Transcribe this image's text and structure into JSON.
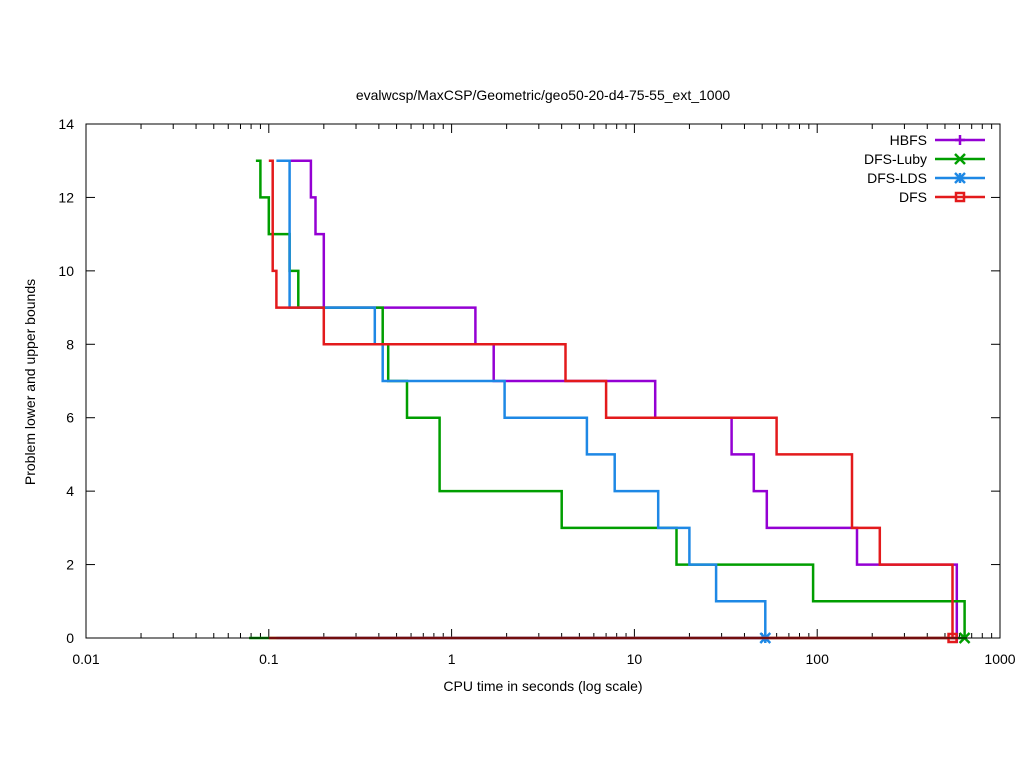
{
  "chart_data": {
    "type": "line",
    "title": "evalwcsp/MaxCSP/Geometric/geo50-20-d4-75-55_ext_1000",
    "xlabel": "CPU time in seconds (log scale)",
    "ylabel": "Problem lower and upper bounds",
    "xscale": "log",
    "xlim": [
      0.01,
      1000
    ],
    "ylim": [
      0,
      14
    ],
    "x_ticks": [
      0.01,
      0.1,
      1,
      10,
      100,
      1000
    ],
    "x_tick_labels": [
      "0.01",
      "0.1",
      "1",
      "10",
      "100",
      "1000"
    ],
    "y_ticks": [
      0,
      2,
      4,
      6,
      8,
      10,
      12,
      14
    ],
    "y_tick_labels": [
      "0",
      "2",
      "4",
      "6",
      "8",
      "10",
      "12",
      "14"
    ],
    "legend_position": "top-right",
    "series": [
      {
        "name": "HBFS",
        "color": "#9400d3",
        "marker": "plus",
        "upper": [
          [
            0.13,
            13
          ],
          [
            0.17,
            12
          ],
          [
            0.18,
            11
          ],
          [
            0.2,
            10
          ],
          [
            0.2,
            9
          ],
          [
            1.35,
            8
          ],
          [
            1.7,
            7
          ],
          [
            13,
            6
          ],
          [
            34,
            5
          ],
          [
            45,
            4
          ],
          [
            53,
            3
          ],
          [
            165,
            2
          ],
          [
            580,
            0
          ]
        ],
        "lower": [
          [
            0.13,
            0
          ],
          [
            580,
            0
          ]
        ]
      },
      {
        "name": "DFS-Luby",
        "color": "#009e00",
        "marker": "cross",
        "upper": [
          [
            0.085,
            13
          ],
          [
            0.09,
            12
          ],
          [
            0.1,
            11
          ],
          [
            0.13,
            10
          ],
          [
            0.145,
            9
          ],
          [
            0.42,
            8
          ],
          [
            0.45,
            7
          ],
          [
            0.57,
            6
          ],
          [
            0.86,
            4
          ],
          [
            4,
            3
          ],
          [
            17,
            2
          ],
          [
            95,
            1
          ],
          [
            640,
            0
          ]
        ],
        "lower": [
          [
            0.078,
            0
          ],
          [
            640,
            0
          ]
        ]
      },
      {
        "name": "DFS-LDS",
        "color": "#1e88e5",
        "marker": "star",
        "upper": [
          [
            0.11,
            13
          ],
          [
            0.13,
            9
          ],
          [
            0.38,
            8
          ],
          [
            0.42,
            7
          ],
          [
            1.95,
            6
          ],
          [
            5.5,
            5
          ],
          [
            7.8,
            4
          ],
          [
            13.5,
            3
          ],
          [
            20,
            2
          ],
          [
            28,
            1
          ],
          [
            52,
            0
          ]
        ],
        "lower": [
          [
            0.11,
            0
          ],
          [
            52,
            0
          ]
        ]
      },
      {
        "name": "DFS",
        "color": "#e31a1c",
        "marker": "square",
        "upper": [
          [
            0.1,
            13
          ],
          [
            0.105,
            10
          ],
          [
            0.11,
            9
          ],
          [
            0.2,
            8
          ],
          [
            4.2,
            7
          ],
          [
            7,
            6
          ],
          [
            60,
            5
          ],
          [
            155,
            3
          ],
          [
            220,
            2
          ],
          [
            550,
            0
          ]
        ],
        "lower": [
          [
            0.1,
            0
          ],
          [
            590,
            0
          ]
        ]
      }
    ]
  }
}
